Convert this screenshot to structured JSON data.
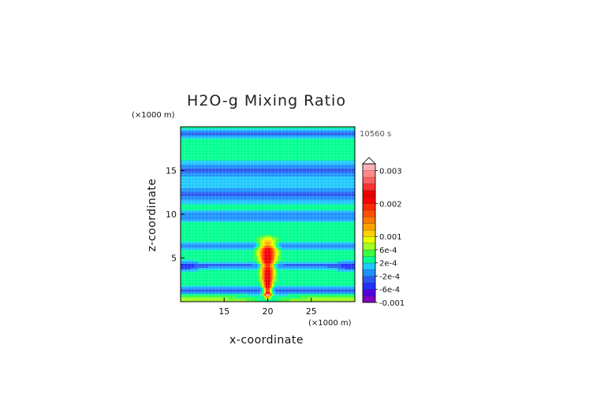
{
  "chart_data": {
    "type": "heatmap",
    "title": "H2O-g Mixing Ratio",
    "time_label": "10560 s",
    "xlabel": "x-coordinate",
    "ylabel": "z-coordinate",
    "x_unit": "(×1000 m)",
    "y_unit": "(×1000 m)",
    "x_ticks": [
      15,
      20,
      25
    ],
    "y_ticks": [
      5,
      10,
      15
    ],
    "xlim": [
      10,
      30
    ],
    "ylim": [
      0,
      20
    ],
    "grid": true,
    "colorbar": {
      "labels": [
        "0.003",
        "0.002",
        "0.001",
        "6e-4",
        "2e-4",
        "-2e-4",
        "-6e-4",
        "-0.001"
      ],
      "label_values": [
        0.003,
        0.002,
        0.001,
        0.0006,
        0.0002,
        -0.0002,
        -0.0006,
        -0.001
      ],
      "levels": [
        -0.001,
        -0.0008,
        -0.0006,
        -0.0004,
        -0.0002,
        0,
        0.0002,
        0.0004,
        0.0006,
        0.0008,
        0.001,
        0.0012,
        0.0014,
        0.0016,
        0.0018,
        0.002,
        0.0022,
        0.0024,
        0.0026,
        0.0028,
        0.003
      ],
      "colors": [
        "#8000c0",
        "#5000e0",
        "#2030ff",
        "#2858f0",
        "#1e90ff",
        "#20c8ff",
        "#00ff90",
        "#40ff40",
        "#a0ff20",
        "#e8ff00",
        "#ffd000",
        "#ffa000",
        "#ff7800",
        "#ff5000",
        "#ff2a00",
        "#ff0000",
        "#e80000",
        "#ff3030",
        "#ff6060",
        "#ff8888",
        "#ffb0b0"
      ],
      "extend": "max"
    }
  }
}
